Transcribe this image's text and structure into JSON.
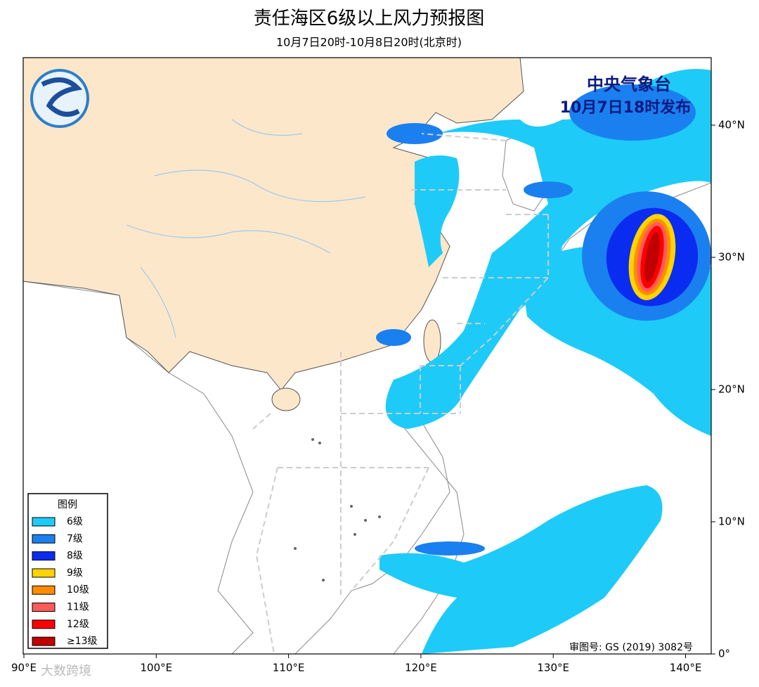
{
  "title": "责任海区6级以上风力预报图",
  "subtitle": "10月7日20时-10月8日20时(北京时)",
  "issuer": {
    "name": "中央气象台",
    "time": "10月7日18时发布"
  },
  "legend": {
    "title": "图例",
    "items": [
      {
        "label": "6级",
        "color": "#1ecbf8"
      },
      {
        "label": "7级",
        "color": "#1a80f0"
      },
      {
        "label": "8级",
        "color": "#0a2cf0"
      },
      {
        "label": "9级",
        "color": "#ffd400"
      },
      {
        "label": "10级",
        "color": "#ff8c00"
      },
      {
        "label": "11级",
        "color": "#ff5a5a"
      },
      {
        "label": "12级",
        "color": "#ff0000"
      },
      {
        "label": "≥13级",
        "color": "#c00000"
      }
    ]
  },
  "lon_ticks": [
    {
      "value": 90,
      "label": "90°E"
    },
    {
      "value": 100,
      "label": "100°E"
    },
    {
      "value": 110,
      "label": "110°E"
    },
    {
      "value": 120,
      "label": "120°E"
    },
    {
      "value": 130,
      "label": "130°E"
    },
    {
      "value": 140,
      "label": "140°E"
    }
  ],
  "lat_ticks": [
    {
      "value": 0,
      "label": "0°"
    },
    {
      "value": 10,
      "label": "10°N"
    },
    {
      "value": 20,
      "label": "20°N"
    },
    {
      "value": 30,
      "label": "30°N"
    },
    {
      "value": 40,
      "label": "40°N"
    }
  ],
  "approval": "审图号: GS (2019) 3082号",
  "watermark": "大数跨境"
}
